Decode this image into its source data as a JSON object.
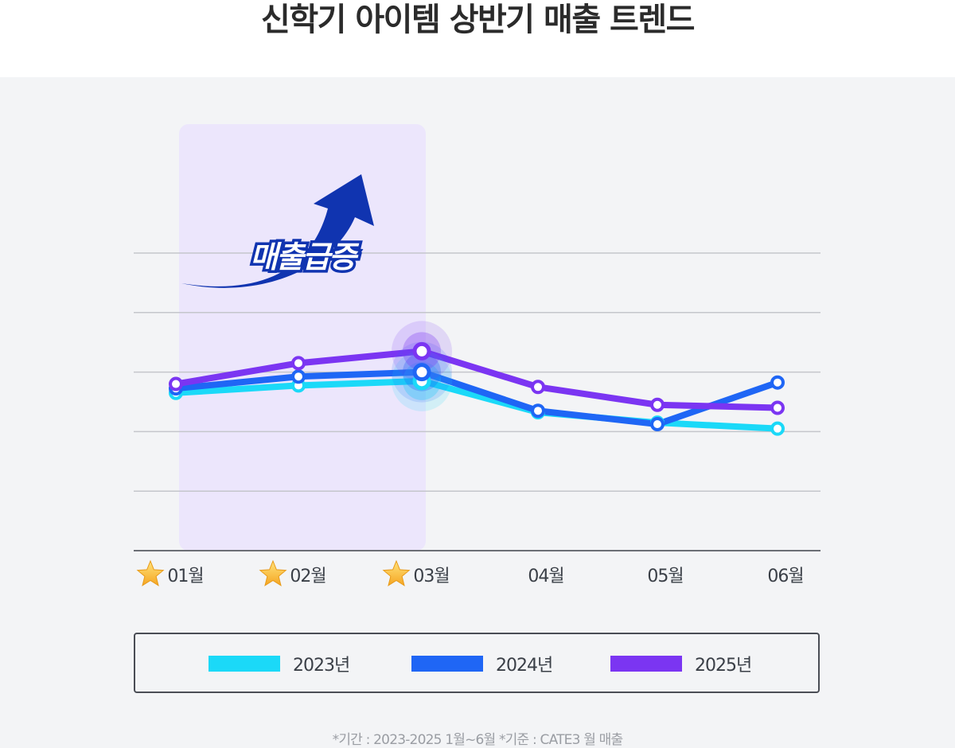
{
  "title": "신학기 아이템 상반기 매출 트렌드",
  "colors": {
    "y2023": "#1bd9f8",
    "y2024": "#1f66f5",
    "y2025": "#7b35f2",
    "highlight": "#ece6fc",
    "callout": "#1034b0"
  },
  "callout_text": "매출급증",
  "footnote": "*기간 : 2023-2025 1월~6월 *기준 : CATE3 월 매출",
  "chart_data": {
    "type": "line",
    "categories": [
      "01월",
      "02월",
      "03월",
      "04월",
      "05월",
      "06월"
    ],
    "starred_categories": [
      "01월",
      "02월",
      "03월"
    ],
    "highlight_range": [
      "01월",
      "03월"
    ],
    "ylim": [
      0,
      100
    ],
    "grid": true,
    "legend_position": "bottom",
    "series": [
      {
        "name": "2023년",
        "color": "#1bd9f8",
        "values": [
          53,
          55.5,
          57,
          46.5,
          43,
          41
        ]
      },
      {
        "name": "2024년",
        "color": "#1f66f5",
        "values": [
          54.5,
          58.5,
          60,
          47,
          42.5,
          56.5
        ]
      },
      {
        "name": "2025년",
        "color": "#7b35f2",
        "values": [
          56,
          63,
          67,
          55,
          49,
          48
        ]
      }
    ]
  }
}
